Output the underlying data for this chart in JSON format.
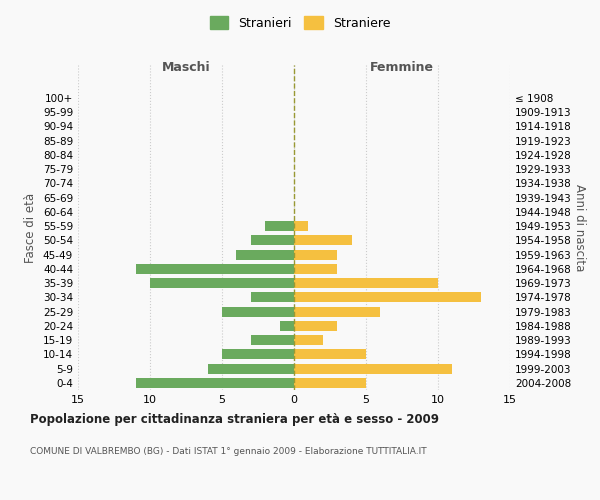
{
  "age_groups": [
    "0-4",
    "5-9",
    "10-14",
    "15-19",
    "20-24",
    "25-29",
    "30-34",
    "35-39",
    "40-44",
    "45-49",
    "50-54",
    "55-59",
    "60-64",
    "65-69",
    "70-74",
    "75-79",
    "80-84",
    "85-89",
    "90-94",
    "95-99",
    "100+"
  ],
  "birth_years": [
    "2004-2008",
    "1999-2003",
    "1994-1998",
    "1989-1993",
    "1984-1988",
    "1979-1983",
    "1974-1978",
    "1969-1973",
    "1964-1968",
    "1959-1963",
    "1954-1958",
    "1949-1953",
    "1944-1948",
    "1939-1943",
    "1934-1938",
    "1929-1933",
    "1924-1928",
    "1919-1923",
    "1914-1918",
    "1909-1913",
    "≤ 1908"
  ],
  "males": [
    11,
    6,
    5,
    3,
    1,
    5,
    3,
    10,
    11,
    4,
    3,
    2,
    0,
    0,
    0,
    0,
    0,
    0,
    0,
    0,
    0
  ],
  "females": [
    5,
    11,
    5,
    2,
    3,
    6,
    13,
    10,
    3,
    3,
    4,
    1,
    0,
    0,
    0,
    0,
    0,
    0,
    0,
    0,
    0
  ],
  "male_color": "#6aaa5e",
  "female_color": "#f5c040",
  "center_line_color": "#999933",
  "grid_color": "#cccccc",
  "background_color": "#f9f9f9",
  "title": "Popolazione per cittadinanza straniera per età e sesso - 2009",
  "subtitle": "COMUNE DI VALBREMBO (BG) - Dati ISTAT 1° gennaio 2009 - Elaborazione TUTTITALIA.IT",
  "xlabel_left": "Maschi",
  "xlabel_right": "Femmine",
  "ylabel_left": "Fasce di età",
  "ylabel_right": "Anni di nascita",
  "legend_male": "Stranieri",
  "legend_female": "Straniere",
  "xlim": 15
}
